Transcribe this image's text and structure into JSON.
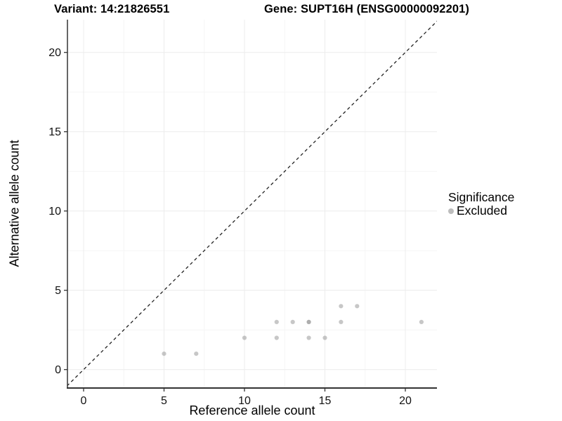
{
  "chart_data": {
    "type": "scatter",
    "title_left": "Variant: 14:21826551",
    "title_right": "Gene: SUPT16H (ENSG00000092201)",
    "xlabel": "Reference allele count",
    "ylabel": "Alternative allele count",
    "xlim": [
      -1.0,
      22.0
    ],
    "ylim": [
      -1.16,
      22.07
    ],
    "x_ticks": [
      0,
      5,
      10,
      15,
      20
    ],
    "y_ticks": [
      0,
      5,
      10,
      15,
      20
    ],
    "minor_grid_offset": 2.5,
    "grid": true,
    "legend_position": "right",
    "identity_line": {
      "type": "dashed",
      "equation": "y = x"
    },
    "series": [
      {
        "name": "Excluded",
        "color": "#999999",
        "opacity": 0.55,
        "points": [
          [
            5,
            1
          ],
          [
            7,
            1
          ],
          [
            10,
            2
          ],
          [
            12,
            2
          ],
          [
            12,
            3
          ],
          [
            13,
            3
          ],
          [
            14,
            2
          ],
          [
            14,
            3
          ],
          [
            14,
            3
          ],
          [
            15,
            2
          ],
          [
            16,
            3
          ],
          [
            16,
            4
          ],
          [
            17,
            4
          ],
          [
            21,
            3
          ]
        ]
      }
    ],
    "legend": {
      "title": "Significance",
      "items": [
        {
          "label": "Excluded",
          "color": "#bdbdbd"
        }
      ]
    }
  },
  "colors": {
    "point": "#999999",
    "legend_key": "#bdbdbd",
    "axis_line": "#333333",
    "grid_major": "#ececec",
    "grid_minor": "#f5f5f5",
    "dashed_line": "#222222",
    "tick_label": "#111111"
  }
}
